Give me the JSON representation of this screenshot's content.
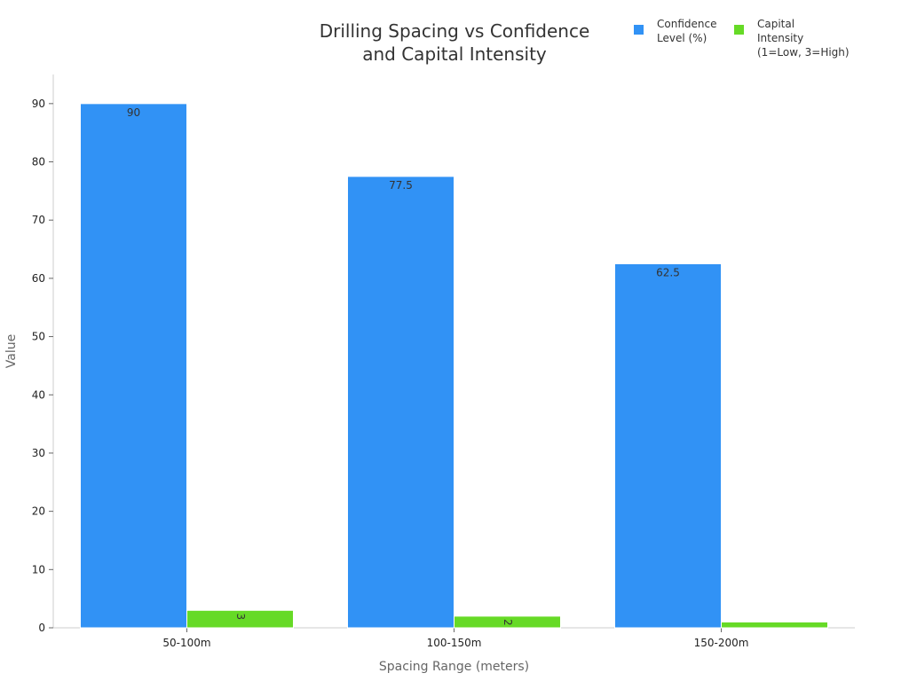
{
  "chart_data": {
    "type": "bar",
    "title_lines": [
      "Drilling Spacing vs Confidence",
      "and Capital Intensity"
    ],
    "xlabel": "Spacing Range (meters)",
    "ylabel": "Value",
    "categories": [
      "50-100m",
      "100-150m",
      "150-200m"
    ],
    "ylim": [
      0,
      95
    ],
    "yticks": [
      0,
      10,
      20,
      30,
      40,
      50,
      60,
      70,
      80,
      90
    ],
    "grid": false,
    "legend_position": "top-right",
    "series": [
      {
        "name_lines": [
          "Confidence",
          "Level (%)"
        ],
        "color": "#3192f5",
        "values": [
          90,
          77.5,
          62.5
        ],
        "labels": [
          "90",
          "77.5",
          "62.5"
        ],
        "label_rotation": 0
      },
      {
        "name_lines": [
          "Capital",
          "Intensity",
          "(1=Low, 3=High)"
        ],
        "color": "#66da26",
        "values": [
          3,
          2,
          1
        ],
        "labels": [
          "3",
          "2",
          ""
        ],
        "label_rotation": 90
      }
    ]
  }
}
